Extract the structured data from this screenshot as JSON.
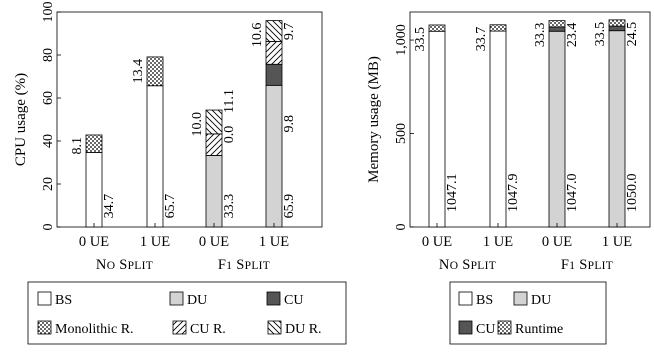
{
  "chart_data": [
    {
      "type": "bar",
      "stacked": true,
      "ylabel": "CPU usage (%)",
      "ylim": [
        0,
        100
      ],
      "yticks": [
        "0",
        "20",
        "40",
        "60",
        "80",
        "100"
      ],
      "categories": [
        "0 UE",
        "1 UE",
        "0 UE",
        "1 UE"
      ],
      "groups": [
        {
          "label": "No Split",
          "small_caps": true,
          "categories": [
            0,
            1
          ]
        },
        {
          "label": "F1 Split",
          "small_caps": true,
          "categories": [
            2,
            3
          ]
        }
      ],
      "grid": false,
      "legend_position": "below",
      "series": [
        {
          "name": "BS",
          "pattern": "white",
          "values": [
            34.7,
            65.7,
            0,
            0
          ],
          "labels": [
            "34.7",
            "65.7",
            null,
            null
          ]
        },
        {
          "name": "DU",
          "pattern": "lightgray",
          "values": [
            0,
            0,
            33.3,
            65.9
          ],
          "labels": [
            null,
            null,
            "33.3",
            "65.9"
          ]
        },
        {
          "name": "CU",
          "pattern": "darkgray",
          "values": [
            0,
            0,
            0.0,
            9.8
          ],
          "labels": [
            null,
            null,
            "0.0",
            "9.8"
          ]
        },
        {
          "name": "Monolithic R.",
          "pattern": "dots",
          "values": [
            8.1,
            13.4,
            0,
            0
          ],
          "labels": [
            "8.1",
            "13.4",
            null,
            null
          ]
        },
        {
          "name": "CU R.",
          "pattern": "diag-up",
          "values": [
            0,
            0,
            10.0,
            10.6
          ],
          "labels": [
            null,
            null,
            "10.0",
            "10.6"
          ]
        },
        {
          "name": "DU R.",
          "pattern": "diag-down",
          "values": [
            0,
            0,
            11.1,
            9.7
          ],
          "labels": [
            null,
            null,
            "11.1",
            "9.7"
          ]
        }
      ]
    },
    {
      "type": "bar",
      "stacked": true,
      "ylabel": "Memory usage (MB)",
      "ylim": [
        0,
        1150
      ],
      "yticks": [
        "0",
        "500",
        "1,000"
      ],
      "ytick_values": [
        0,
        500,
        1000
      ],
      "categories": [
        "0 UE",
        "1 UE",
        "0 UE",
        "1 UE"
      ],
      "groups": [
        {
          "label": "No Split",
          "small_caps": true,
          "categories": [
            0,
            1
          ]
        },
        {
          "label": "F1 Split",
          "small_caps": true,
          "categories": [
            2,
            3
          ]
        }
      ],
      "grid": false,
      "legend_position": "below",
      "series": [
        {
          "name": "BS",
          "pattern": "white",
          "values": [
            1047.1,
            1047.9,
            0,
            0
          ],
          "labels": [
            "1047.1",
            "1047.9",
            null,
            null
          ]
        },
        {
          "name": "DU",
          "pattern": "lightgray",
          "values": [
            0,
            0,
            1047.0,
            1050.0
          ],
          "labels": [
            null,
            null,
            "1047.0",
            "1050.0"
          ]
        },
        {
          "name": "CU",
          "pattern": "darkgray",
          "values": [
            0,
            0,
            23.4,
            24.5
          ],
          "labels": [
            null,
            null,
            "23.4",
            "24.5"
          ]
        },
        {
          "name": "Runtime",
          "pattern": "dots",
          "values": [
            33.5,
            33.7,
            33.3,
            33.5
          ],
          "labels": [
            "33.5",
            "33.7",
            "33.3",
            "33.5"
          ]
        }
      ]
    }
  ],
  "colors": {
    "light_gray": "#d3d3d3",
    "dark_gray": "#555555",
    "stroke": "#000000"
  }
}
